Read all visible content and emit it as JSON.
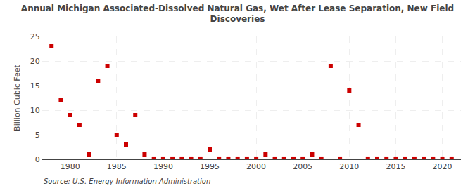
{
  "chart_data": {
    "type": "scatter",
    "title": "Annual Michigan Associated-Dissolved Natural Gas, Wet After Lease Separation, New Field\nDiscoveries",
    "ylabel": "Billion Cubic Feet",
    "annotations": [
      "Source: U.S. Energy Information Administration"
    ],
    "color": "#cc0000",
    "marker": "square",
    "grid": true,
    "xlim": [
      1977,
      2022
    ],
    "ylim": [
      0,
      25
    ],
    "yticks": [
      0,
      5,
      10,
      15,
      20,
      25
    ],
    "xticks": [
      1980,
      1985,
      1990,
      1995,
      2000,
      2005,
      2010,
      2015,
      2020
    ],
    "x": [
      1978,
      1979,
      1980,
      1981,
      1982,
      1983,
      1984,
      1985,
      1986,
      1987,
      1988,
      1989,
      1990,
      1991,
      1992,
      1993,
      1994,
      1995,
      1996,
      1997,
      1998,
      1999,
      2000,
      2001,
      2002,
      2003,
      2004,
      2005,
      2006,
      2007,
      2008,
      2009,
      2010,
      2011,
      2012,
      2013,
      2014,
      2015,
      2016,
      2017,
      2018,
      2019,
      2020,
      2021
    ],
    "values": [
      23.0,
      12.0,
      9.0,
      7.0,
      1.0,
      16.0,
      19.0,
      5.0,
      3.0,
      9.0,
      1.0,
      0.15,
      0.15,
      0.15,
      0.15,
      0.15,
      0.15,
      2.0,
      0.15,
      0.15,
      0.15,
      0.15,
      0.15,
      1.0,
      0.15,
      0.15,
      0.15,
      0.15,
      1.0,
      0.15,
      19.0,
      0.15,
      14.0,
      7.0,
      0.15,
      0.15,
      0.15,
      0.15,
      0.15,
      0.15,
      0.15,
      0.15,
      0.15,
      0.15
    ]
  }
}
